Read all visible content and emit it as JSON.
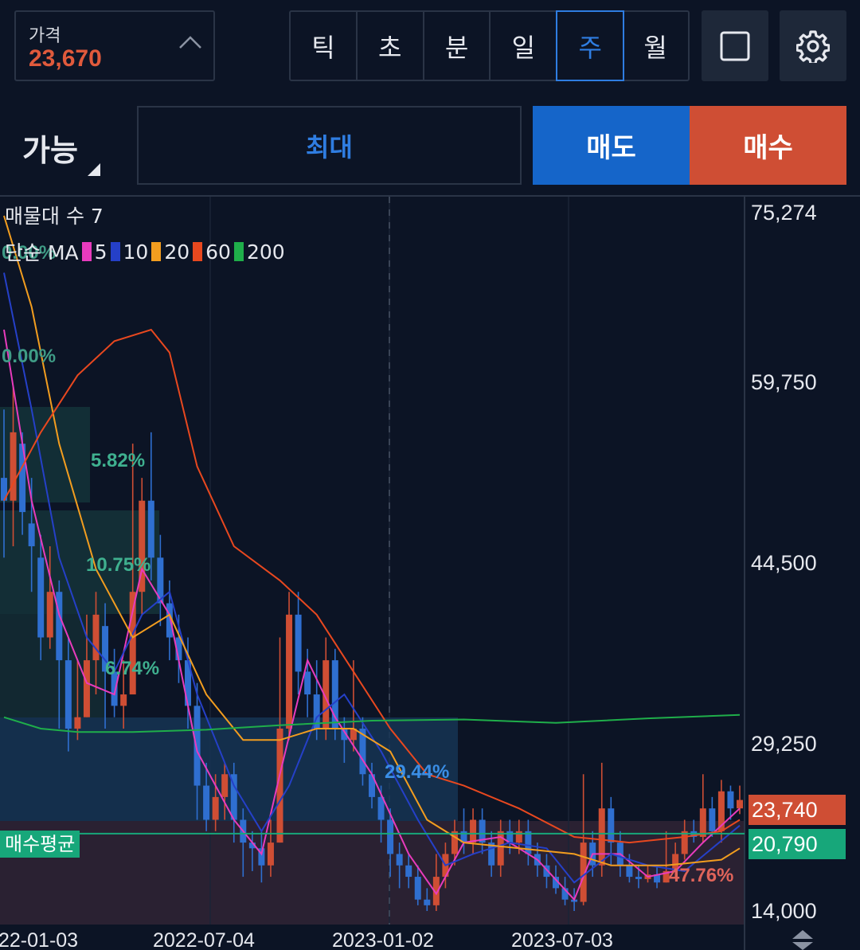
{
  "header": {
    "price_label": "가격",
    "price_value": "23,670",
    "timeframes": [
      "틱",
      "초",
      "분",
      "일",
      "주",
      "월"
    ],
    "active_timeframe": "주"
  },
  "order": {
    "available_label": "가능",
    "max_label": "최대",
    "sell_label": "매도",
    "buy_label": "매수"
  },
  "legend": {
    "volume_profile": "매물대 수 7",
    "ma_label": "단순 MA",
    "ma_periods": [
      "5",
      "10",
      "20",
      "60",
      "200"
    ],
    "ma_colors": [
      "#e83bbd",
      "#2540c8",
      "#f29d1f",
      "#e8481f",
      "#1fae4a"
    ]
  },
  "colors": {
    "up": "#cf4e34",
    "down": "#2f6fd0",
    "avg_line": "#17a77a"
  },
  "chart_data": {
    "type": "candlestick",
    "y_axis": {
      "min": 14000,
      "max": 75274,
      "ticks": [
        "75,274",
        "59,750",
        "44,500",
        "29,250",
        "14,000"
      ]
    },
    "x_axis": {
      "ticks": [
        "22-01-03",
        "2022-07-04",
        "2023-01-02",
        "2023-07-03"
      ]
    },
    "last_price": "23,740",
    "avg_buy_label": "매수평균",
    "avg_buy_price": "20,790",
    "percent_labels": [
      "0.00%",
      "0.00%",
      "5.82%",
      "10.75%",
      "6.74%",
      "29.44%",
      "47.76%"
    ],
    "volume_profile_levels": 7,
    "ma_series": [
      "5",
      "10",
      "20",
      "60",
      "200"
    ]
  }
}
